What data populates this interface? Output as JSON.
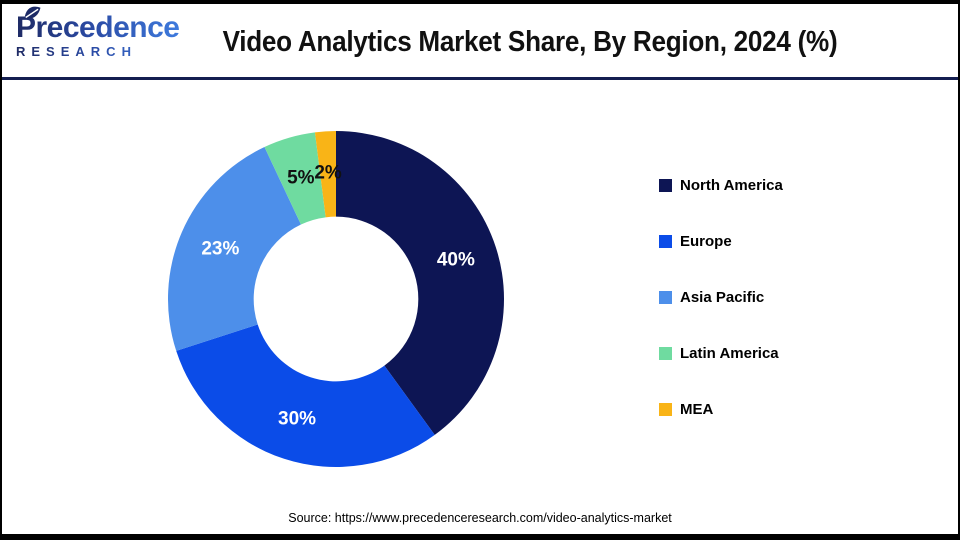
{
  "header": {
    "logo_line1": "Precedence",
    "logo_line2": "RESEARCH",
    "title": "Video Analytics Market Share, By Region, 2024 (%)"
  },
  "chart_data": {
    "type": "pie",
    "subtype": "donut",
    "title": "Video Analytics Market Share, By Region, 2024 (%)",
    "categories": [
      "North America",
      "Europe",
      "Asia Pacific",
      "Latin America",
      "MEA"
    ],
    "values": [
      40,
      30,
      23,
      5,
      2
    ],
    "unit": "%",
    "data_labels": [
      "40%",
      "30%",
      "23%",
      "5%",
      "2%"
    ],
    "colors": [
      "#0d1554",
      "#0b4ce8",
      "#4d8fea",
      "#6fdba0",
      "#f9b417"
    ],
    "data_label_colors": [
      "#ffffff",
      "#ffffff",
      "#ffffff",
      "#111111",
      "#111111"
    ],
    "start_angle_deg": 0,
    "direction": "clockwise",
    "inner_radius_ratio": 0.49,
    "label_radius_ratio": 0.75,
    "legend_position": "right",
    "background": "#ffffff"
  },
  "footer": {
    "source": "Source: https://www.precedenceresearch.com/video-analytics-market"
  },
  "style": {
    "separator_color": "#141e50",
    "border_color": "#000000"
  }
}
